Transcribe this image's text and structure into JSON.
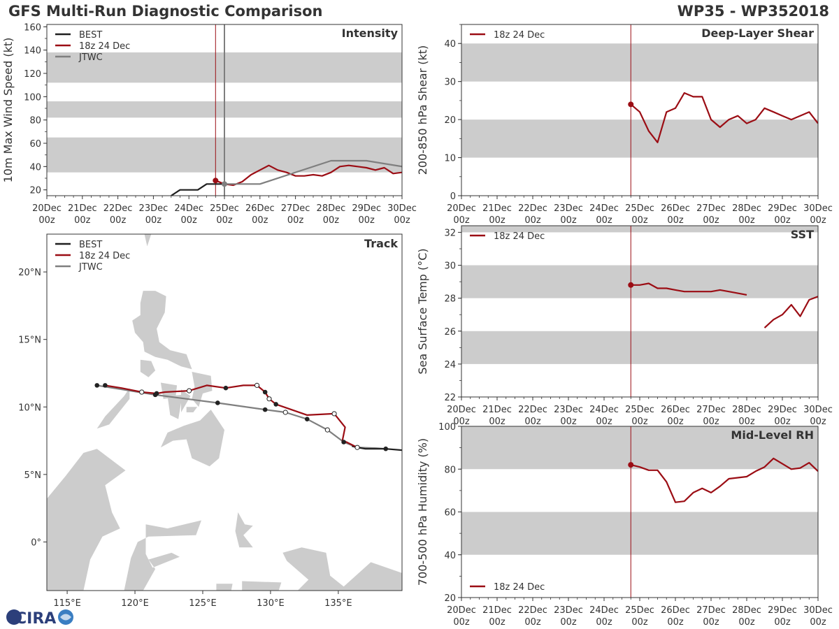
{
  "header": {
    "title": "GFS Multi-Run Diagnostic Comparison",
    "storm": "WP35 - WP352018"
  },
  "colors": {
    "best": "#1f1f1f",
    "run": "#9b0d14",
    "jtwc": "#7f7f7f",
    "band": "#cccccc",
    "land": "#cccccc"
  },
  "time_ticks": [
    {
      "day": "20Dec",
      "hour": "00z"
    },
    {
      "day": "21Dec",
      "hour": "00z"
    },
    {
      "day": "22Dec",
      "hour": "00z"
    },
    {
      "day": "23Dec",
      "hour": "00z"
    },
    {
      "day": "24Dec",
      "hour": "00z"
    },
    {
      "day": "25Dec",
      "hour": "00z"
    },
    {
      "day": "26Dec",
      "hour": "00z"
    },
    {
      "day": "27Dec",
      "hour": "00z"
    },
    {
      "day": "28Dec",
      "hour": "00z"
    },
    {
      "day": "29Dec",
      "hour": "00z"
    },
    {
      "day": "30Dec",
      "hour": "00z"
    }
  ],
  "logo": {
    "text": "CIRA"
  },
  "chart_data": [
    {
      "id": "intensity",
      "type": "line",
      "title": "Intensity",
      "ylabel": "10m Max Wind Speed (kt)",
      "xlabel": "",
      "xlim": [
        0,
        10
      ],
      "ylim": [
        15,
        162
      ],
      "yticks": [
        20,
        40,
        60,
        80,
        100,
        120,
        140,
        160
      ],
      "bands": [
        [
          35,
          65
        ],
        [
          82,
          96
        ],
        [
          112,
          138
        ]
      ],
      "vlines": [
        {
          "x": 4.75,
          "color": "run"
        },
        {
          "x": 5.0,
          "color": "jtwc"
        }
      ],
      "legend": [
        "BEST",
        "18z 24 Dec",
        "JTWC"
      ],
      "legend_position": "top-left",
      "series": [
        {
          "name": "BEST",
          "color": "best",
          "x": [
            3.5,
            3.75,
            4.0,
            4.25,
            4.5,
            4.75,
            5.0
          ],
          "y": [
            15,
            20,
            20,
            20,
            25,
            25,
            25
          ]
        },
        {
          "name": "18z 24 Dec",
          "color": "run",
          "marker_at_start": true,
          "x": [
            4.75,
            5.0,
            5.25,
            5.5,
            5.75,
            6.0,
            6.25,
            6.5,
            6.75,
            7.0,
            7.25,
            7.5,
            7.75,
            8.0,
            8.25,
            8.5,
            8.75,
            9.0,
            9.25,
            9.5,
            9.75,
            10.0
          ],
          "y": [
            28,
            25,
            24,
            27,
            33,
            37,
            41,
            37,
            35,
            32,
            32,
            33,
            32,
            35,
            40,
            41,
            40,
            39,
            37,
            39,
            34,
            35
          ]
        },
        {
          "name": "JTWC",
          "color": "jtwc",
          "marker_at_start": true,
          "x": [
            5.0,
            5.5,
            6.0,
            8.0,
            9.0,
            10.0
          ],
          "y": [
            25,
            25,
            25,
            45,
            45,
            40
          ]
        }
      ]
    },
    {
      "id": "shear",
      "type": "line",
      "title": "Deep-Layer Shear",
      "ylabel": "200-850 hPa Shear (kt)",
      "xlabel": "",
      "xlim": [
        0,
        10
      ],
      "ylim": [
        0,
        45
      ],
      "yticks": [
        0,
        10,
        20,
        30,
        40
      ],
      "bands": [
        [
          10,
          20
        ],
        [
          30,
          40
        ]
      ],
      "vlines": [
        {
          "x": 4.75,
          "color": "run"
        }
      ],
      "legend": [
        "18z 24 Dec"
      ],
      "legend_position": "top-left",
      "series": [
        {
          "name": "18z 24 Dec",
          "color": "run",
          "marker_at_start": true,
          "x": [
            4.75,
            5.0,
            5.25,
            5.5,
            5.75,
            6.0,
            6.25,
            6.5,
            6.75,
            7.0,
            7.25,
            7.5,
            7.75,
            8.0,
            8.25,
            8.5,
            8.75,
            9.0,
            9.25,
            9.5,
            9.75,
            10.0
          ],
          "y": [
            24,
            22,
            17,
            14,
            22,
            23,
            27,
            26,
            26,
            20,
            18,
            20,
            21,
            19,
            20,
            23,
            22,
            21,
            20,
            21,
            22,
            19
          ]
        }
      ]
    },
    {
      "id": "sst",
      "type": "line",
      "title": "SST",
      "ylabel": "Sea Surface Temp (°C)",
      "xlabel": "",
      "xlim": [
        0,
        10
      ],
      "ylim": [
        22,
        32.4
      ],
      "yticks": [
        22,
        24,
        26,
        28,
        30,
        32
      ],
      "bands": [
        [
          24,
          26
        ],
        [
          28,
          30
        ],
        [
          32,
          34
        ]
      ],
      "vlines": [
        {
          "x": 4.75,
          "color": "run"
        }
      ],
      "legend": [
        "18z 24 Dec"
      ],
      "legend_position": "top-left",
      "series": [
        {
          "name": "18z 24 Dec",
          "color": "run",
          "marker_at_start": true,
          "x": [
            4.75,
            5.0,
            5.25,
            5.5,
            5.75,
            6.0,
            6.25,
            6.5,
            6.75,
            7.0,
            7.25,
            7.5,
            7.75,
            8.0
          ],
          "y": [
            28.8,
            28.8,
            28.9,
            28.6,
            28.6,
            28.5,
            28.4,
            28.4,
            28.4,
            28.4,
            28.5,
            28.4,
            28.3,
            28.2
          ]
        },
        {
          "name": "18z 24 Dec (cont.)",
          "color": "run",
          "marker_at_start": false,
          "x": [
            8.5,
            8.75,
            9.0,
            9.25,
            9.5,
            9.75,
            10.0
          ],
          "y": [
            26.2,
            26.7,
            27.0,
            27.6,
            26.9,
            27.9,
            28.1
          ]
        }
      ]
    },
    {
      "id": "rh",
      "type": "line",
      "title": "Mid-Level RH",
      "ylabel": "700-500 hPa Humidity (%)",
      "xlabel": "",
      "xlim": [
        0,
        10
      ],
      "ylim": [
        20,
        100
      ],
      "yticks": [
        20,
        40,
        60,
        80,
        100
      ],
      "bands": [
        [
          40,
          60
        ],
        [
          80,
          100
        ]
      ],
      "vlines": [
        {
          "x": 4.75,
          "color": "run"
        }
      ],
      "legend": [
        "18z 24 Dec"
      ],
      "legend_position": "bottom-left",
      "series": [
        {
          "name": "18z 24 Dec",
          "color": "run",
          "marker_at_start": true,
          "x": [
            4.75,
            5.0,
            5.25,
            5.5,
            5.75,
            6.0,
            6.25,
            6.5,
            6.75,
            7.0,
            7.25,
            7.5,
            7.75,
            8.0,
            8.25,
            8.5,
            8.75,
            9.0,
            9.25,
            9.5,
            9.75,
            10.0
          ],
          "y": [
            82,
            81,
            79.5,
            79.5,
            74,
            64.5,
            65,
            69,
            71,
            69,
            72,
            75.5,
            76,
            76.5,
            79,
            81,
            85,
            82.5,
            80,
            80.5,
            83,
            79
          ]
        }
      ]
    },
    {
      "id": "track",
      "type": "map-track",
      "title": "Track",
      "lon_range": [
        113.5,
        139.7
      ],
      "lat_range": [
        -3.6,
        22.8
      ],
      "lon_ticks": [
        {
          "v": 115,
          "label": "115°E"
        },
        {
          "v": 120,
          "label": "120°E"
        },
        {
          "v": 125,
          "label": "125°E"
        },
        {
          "v": 130,
          "label": "130°E"
        },
        {
          "v": 135,
          "label": "135°E"
        }
      ],
      "lat_ticks": [
        {
          "v": 0,
          "label": "0°"
        },
        {
          "v": 5,
          "label": "5°N"
        },
        {
          "v": 10,
          "label": "10°N"
        },
        {
          "v": 15,
          "label": "15°N"
        },
        {
          "v": 20,
          "label": "20°N"
        }
      ],
      "legend": [
        "BEST",
        "18z 24 Dec",
        "JTWC"
      ],
      "legend_position": "top-left",
      "series": [
        {
          "name": "BEST",
          "color": "best",
          "lon": [
            139.7,
            138.5,
            137.0,
            136.4,
            136.0
          ],
          "lat": [
            6.8,
            6.9,
            6.9,
            7.0,
            7.1
          ]
        },
        {
          "name": "18z 24 Dec",
          "color": "run",
          "lon": [
            117.8,
            119.0,
            120.5,
            121.6,
            122.2,
            124.0,
            125.3,
            126.7,
            128.0,
            129.0,
            129.6,
            129.9,
            130.4,
            132.7,
            134.7,
            135.5,
            135.3,
            135.6,
            136.4
          ],
          "lat": [
            11.6,
            11.4,
            11.1,
            11.0,
            11.1,
            11.2,
            11.6,
            11.4,
            11.6,
            11.6,
            11.1,
            10.6,
            10.2,
            9.4,
            9.5,
            8.5,
            7.5,
            7.4,
            7.0
          ],
          "open_markers": [
            [
              120.5,
              11.1
            ],
            [
              124.0,
              11.2
            ],
            [
              129.0,
              11.6
            ],
            [
              129.9,
              10.6
            ],
            [
              134.7,
              9.5
            ],
            [
              136.4,
              7.0
            ]
          ],
          "filled_markers": [
            [
              117.8,
              11.6
            ],
            [
              121.6,
              11.0
            ],
            [
              126.7,
              11.4
            ],
            [
              129.6,
              11.1
            ],
            [
              130.4,
              10.2
            ]
          ]
        },
        {
          "name": "JTWC",
          "color": "jtwc",
          "lon": [
            117.2,
            121.5,
            126.1,
            129.6,
            131.1,
            132.7,
            134.2,
            135.4,
            136.4,
            137.8,
            138.5
          ],
          "lat": [
            11.6,
            10.9,
            10.3,
            9.8,
            9.6,
            9.1,
            8.3,
            7.4,
            7.0,
            6.95,
            6.9
          ],
          "open_markers": [
            [
              131.1,
              9.6
            ],
            [
              134.2,
              8.3
            ]
          ],
          "filled_markers": [
            [
              117.2,
              11.6
            ],
            [
              121.5,
              10.9
            ],
            [
              126.1,
              10.3
            ],
            [
              129.6,
              9.8
            ],
            [
              132.7,
              9.1
            ],
            [
              135.4,
              7.4
            ],
            [
              138.5,
              6.9
            ]
          ]
        }
      ]
    }
  ]
}
